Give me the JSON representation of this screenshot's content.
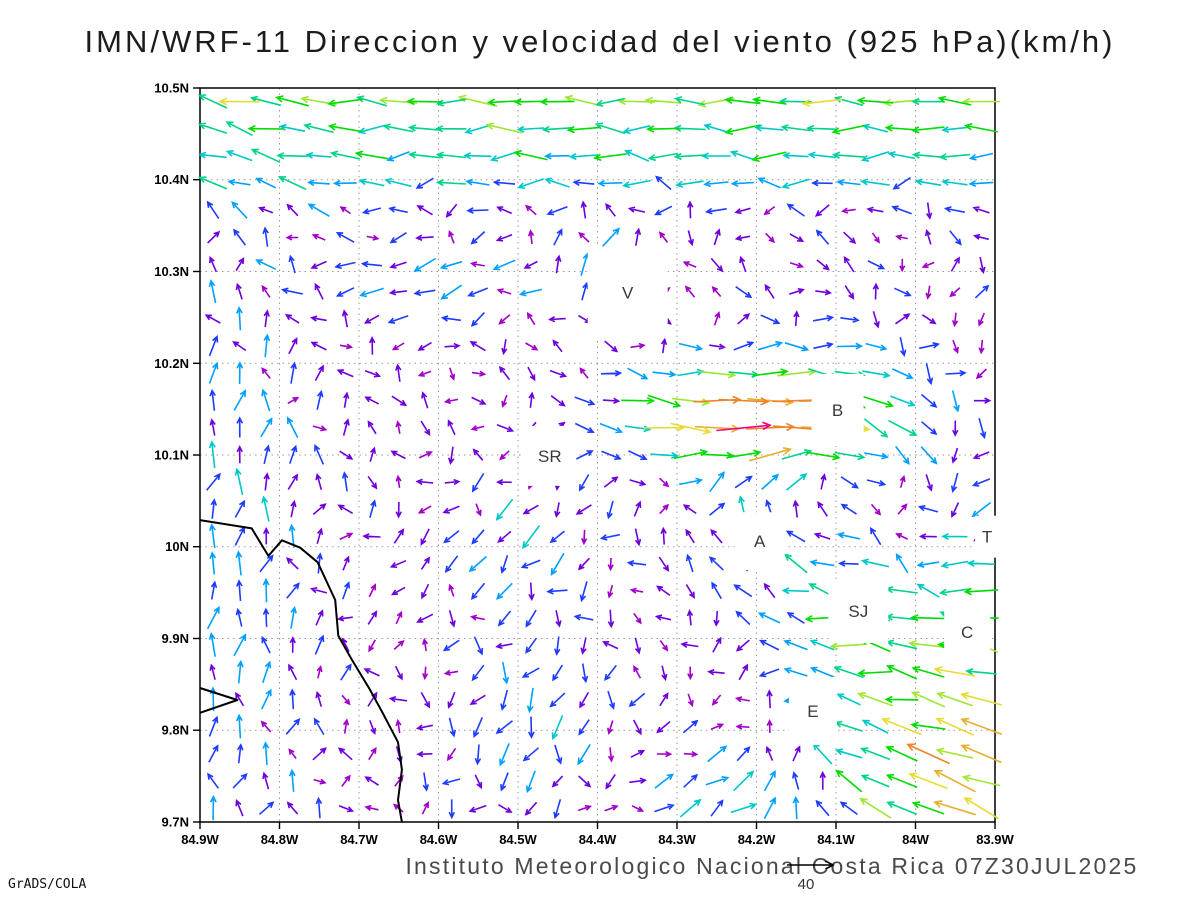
{
  "title": "IMN/WRF-11 Direccion y velocidad del viento (925 hPa)(km/h)",
  "footer": "Instituto Meteorologico Nacional Costa Rica 07Z30JUL2025",
  "stamp": "GrADS/COLA",
  "reference": {
    "label": "40",
    "speed_kmh": 40
  },
  "axes": {
    "lat_ticks": [
      {
        "v": 10.5,
        "label": "10.5N"
      },
      {
        "v": 10.4,
        "label": "10.4N"
      },
      {
        "v": 10.3,
        "label": "10.3N"
      },
      {
        "v": 10.2,
        "label": "10.2N"
      },
      {
        "v": 10.1,
        "label": "10.1N"
      },
      {
        "v": 10.0,
        "label": "10N"
      },
      {
        "v": 9.9,
        "label": "9.9N"
      },
      {
        "v": 9.8,
        "label": "9.8N"
      },
      {
        "v": 9.7,
        "label": "9.7N"
      }
    ],
    "lon_ticks": [
      {
        "v": -84.9,
        "label": "84.9W"
      },
      {
        "v": -84.8,
        "label": "84.8W"
      },
      {
        "v": -84.7,
        "label": "84.7W"
      },
      {
        "v": -84.6,
        "label": "84.6W"
      },
      {
        "v": -84.5,
        "label": "84.5W"
      },
      {
        "v": -84.4,
        "label": "84.4W"
      },
      {
        "v": -84.3,
        "label": "84.3W"
      },
      {
        "v": -84.2,
        "label": "84.2W"
      },
      {
        "v": -84.1,
        "label": "84.1W"
      },
      {
        "v": -84.0,
        "label": "84W"
      },
      {
        "v": -83.9,
        "label": "83.9W"
      }
    ]
  },
  "chart_data": {
    "type": "vector_field",
    "variable": "wind direction and speed",
    "model": "IMN/WRF-11",
    "level_hPa": 925,
    "units": "km/h",
    "valid_time": "07Z30JUL2025",
    "region": "Costa Rica central area",
    "lon_range": [
      -84.9,
      -83.9
    ],
    "lat_range": [
      9.7,
      10.5
    ],
    "grid": {
      "nx": 30,
      "ny": 27
    },
    "reference_vector_kmh": 40,
    "grid_lines": {
      "style": "dotted",
      "interval_deg": 0.1
    },
    "speed_colors": [
      {
        "max": 4,
        "color": "#a000c8"
      },
      {
        "max": 8,
        "color": "#6e00dc"
      },
      {
        "max": 12,
        "color": "#1e3cff"
      },
      {
        "max": 16,
        "color": "#00a0ff"
      },
      {
        "max": 20,
        "color": "#00c8c8"
      },
      {
        "max": 24,
        "color": "#00d28c"
      },
      {
        "max": 28,
        "color": "#00dc00"
      },
      {
        "max": 32,
        "color": "#a0e632"
      },
      {
        "max": 36,
        "color": "#e6dc32"
      },
      {
        "max": 40,
        "color": "#e6af2d"
      },
      {
        "max": 44,
        "color": "#f08228"
      },
      {
        "max": 48,
        "color": "#fa3c3c"
      },
      {
        "max": 999,
        "color": "#f00082"
      }
    ],
    "flow_components": [
      {
        "type": "noise",
        "amp": 4.2,
        "f": [
          61,
          47,
          53,
          67
        ],
        "p": [
          1.3,
          0.7
        ]
      },
      {
        "type": "noise",
        "amp": 2.6,
        "f": [
          103,
          89,
          97,
          113
        ],
        "p": [
          4.1,
          2.3
        ]
      },
      {
        "type": "bandlat",
        "lat0": 10.33,
        "lat1": 10.43,
        "u": -20,
        "v": 0
      },
      {
        "type": "bandlat",
        "lat0": 10.44,
        "lat1": 10.49,
        "u": -6,
        "v": 1
      },
      {
        "type": "gauss",
        "c": [
          -84.88,
          10.0
        ],
        "rx": 0.16,
        "ry": 0.5,
        "u": 1,
        "v": 12
      },
      {
        "type": "gauss",
        "c": [
          -84.62,
          10.29
        ],
        "rx": 0.22,
        "ry": 0.05,
        "u": -12,
        "v": -5
      },
      {
        "type": "gauss",
        "c": [
          -84.4,
          10.31
        ],
        "rx": 0.07,
        "ry": 0.05,
        "u": 9,
        "v": 13
      },
      {
        "type": "gauss",
        "c": [
          -84.22,
          10.14
        ],
        "rx": 0.16,
        "ry": 0.06,
        "u": 40,
        "v": -9
      },
      {
        "type": "vortex",
        "c": [
          -84.1,
          10.07
        ],
        "r": 0.13,
        "k": -30
      },
      {
        "type": "corner",
        "lon0": -84.25,
        "lon1": -84.05,
        "lat0": 10.02,
        "lat1": 9.88,
        "u": -18,
        "v": 5
      },
      {
        "type": "gauss",
        "c": [
          -83.93,
          9.76
        ],
        "rx": 0.12,
        "ry": 0.09,
        "u": -16,
        "v": 8
      },
      {
        "type": "gauss",
        "c": [
          -84.48,
          9.8
        ],
        "rx": 0.13,
        "ry": 0.1,
        "u": -5,
        "v": -12
      },
      {
        "type": "gauss",
        "c": [
          -84.5,
          10.0
        ],
        "rx": 0.12,
        "ry": 0.08,
        "u": -8,
        "v": -9
      },
      {
        "type": "gauss",
        "c": [
          -83.92,
          9.98
        ],
        "rx": 0.1,
        "ry": 0.12,
        "u": -12,
        "v": 0
      },
      {
        "type": "gauss",
        "c": [
          -84.02,
          10.02
        ],
        "rx": 0.06,
        "ry": 0.08,
        "u": 8,
        "v": 16
      },
      {
        "type": "gauss",
        "c": [
          -84.22,
          9.73
        ],
        "rx": 0.15,
        "ry": 0.06,
        "u": 14,
        "v": 10
      }
    ],
    "city_labels": [
      {
        "text": "V",
        "lon": -84.362,
        "lat": 10.277,
        "mask": [
          80,
          90
        ]
      },
      {
        "text": "B",
        "lon": -84.098,
        "lat": 10.149,
        "mask": [
          52,
          72
        ]
      },
      {
        "text": "SR",
        "lon": -84.46,
        "lat": 10.099,
        "mask": [
          52,
          60
        ]
      },
      {
        "text": "A",
        "lon": -84.196,
        "lat": 10.006,
        "mask": [
          50,
          58
        ]
      },
      {
        "text": "T",
        "lon": -83.91,
        "lat": 10.011,
        "mask": [
          24,
          42
        ]
      },
      {
        "text": "SJ",
        "lon": -84.072,
        "lat": 9.93,
        "mask": [
          60,
          64
        ]
      },
      {
        "text": "C",
        "lon": -83.935,
        "lat": 9.907,
        "mask": [
          46,
          60
        ]
      },
      {
        "text": "E",
        "lon": -84.129,
        "lat": 9.821,
        "mask": [
          48,
          68
        ]
      }
    ],
    "coastline": [
      [
        [
          -84.9,
          10.029
        ],
        [
          -84.835,
          10.02
        ],
        [
          -84.814,
          9.99
        ],
        [
          -84.797,
          10.007
        ],
        [
          -84.774,
          9.999
        ],
        [
          -84.752,
          9.983
        ],
        [
          -84.73,
          9.942
        ],
        [
          -84.726,
          9.903
        ],
        [
          -84.709,
          9.877
        ],
        [
          -84.686,
          9.844
        ],
        [
          -84.671,
          9.82
        ],
        [
          -84.651,
          9.787
        ],
        [
          -84.646,
          9.757
        ],
        [
          -84.651,
          9.724
        ],
        [
          -84.646,
          9.7
        ]
      ],
      [
        [
          -84.9,
          9.846
        ],
        [
          -84.853,
          9.833
        ],
        [
          -84.9,
          9.819
        ]
      ]
    ]
  }
}
